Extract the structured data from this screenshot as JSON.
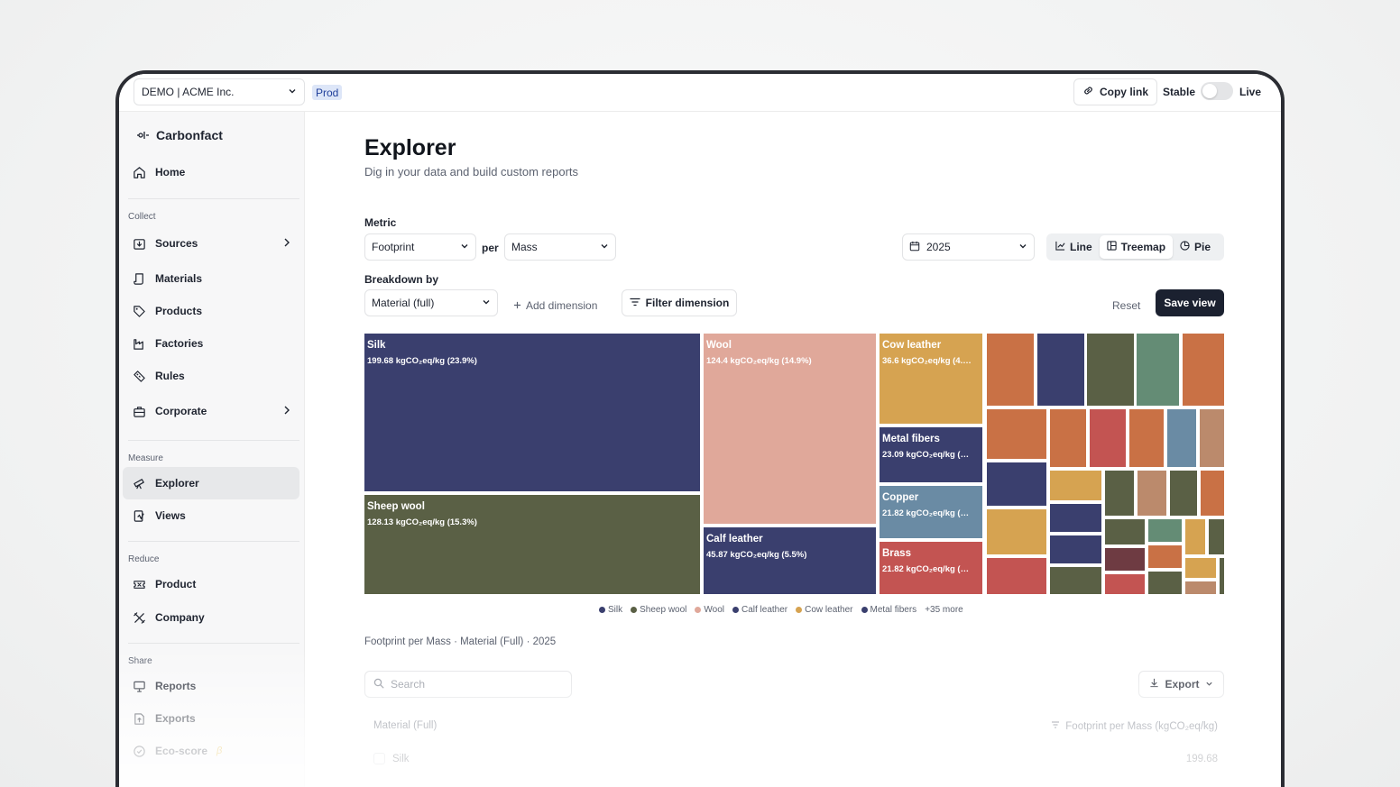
{
  "topbar": {
    "org": "DEMO | ACME Inc.",
    "env": "Prod",
    "copy_link": "Copy link",
    "stable": "Stable",
    "live": "Live"
  },
  "sidebar": {
    "brand": "Carbonfact",
    "home": "Home",
    "sections": {
      "collect": "Collect",
      "measure": "Measure",
      "reduce": "Reduce",
      "share": "Share"
    },
    "collect_items": [
      "Sources",
      "Materials",
      "Products",
      "Factories",
      "Rules",
      "Corporate"
    ],
    "measure_items": [
      "Explorer",
      "Views"
    ],
    "reduce_items": [
      "Product",
      "Company"
    ],
    "share_items": [
      "Reports",
      "Exports",
      "Eco-score"
    ],
    "beta_mark": "β"
  },
  "page": {
    "title": "Explorer",
    "subtitle": "Dig in your data and build custom reports"
  },
  "controls": {
    "metric_label": "Metric",
    "metric_value": "Footprint",
    "per_label": "per",
    "per_value": "Mass",
    "year_value": "2025",
    "chart_types": [
      "Line",
      "Treemap",
      "Pie"
    ],
    "active_chart_type": "Treemap",
    "breakdown_label": "Breakdown by",
    "breakdown_value": "Material (full)",
    "add_dimension": "Add dimension",
    "filter_dimension": "Filter dimension",
    "reset": "Reset",
    "save_view": "Save view"
  },
  "colors": {
    "navy": "#3a3f6e",
    "olive": "#5a6045",
    "salmon": "#e0a89a",
    "mustard": "#d6a351",
    "slate": "#6a8ba4",
    "red": "#c35452",
    "orange": "#c97145",
    "sage": "#648c75",
    "tan": "#bb8a6c",
    "maroon": "#6e3b42"
  },
  "chart_data": {
    "type": "treemap",
    "unit_label": "kgCO₂eq/kg",
    "items": [
      {
        "name": "Silk",
        "value": 199.68,
        "label": "199.68 kgCO₂eq/kg (23.9%)",
        "color": "#3a3f6e"
      },
      {
        "name": "Sheep wool",
        "value": 128.13,
        "label": "128.13 kgCO₂eq/kg (15.3%)",
        "color": "#5a6045"
      },
      {
        "name": "Wool",
        "value": 124.4,
        "label": "124.4 kgCO₂eq/kg (14.9%)",
        "color": "#e0a89a"
      },
      {
        "name": "Calf leather",
        "value": 45.87,
        "label": "45.87 kgCO₂eq/kg (5.5%)",
        "color": "#3a3f6e"
      },
      {
        "name": "Cow leather",
        "value": 36.6,
        "label": "36.6 kgCO₂eq/kg (4.…",
        "color": "#d6a351"
      },
      {
        "name": "Metal fibers",
        "value": 23.09,
        "label": "23.09 kgCO₂eq/kg (…",
        "color": "#3a3f6e"
      },
      {
        "name": "Copper",
        "value": 21.82,
        "label": "21.82 kgCO₂eq/kg (…",
        "color": "#6a8ba4"
      },
      {
        "name": "Brass",
        "value": 21.82,
        "label": "21.82 kgCO₂eq/kg (…",
        "color": "#c35452"
      }
    ],
    "legend": [
      "Silk",
      "Sheep wool",
      "Wool",
      "Calf leather",
      "Cow leather",
      "Metal fibers"
    ],
    "legend_colors": [
      "#3a3f6e",
      "#5a6045",
      "#e0a89a",
      "#3a3f6e",
      "#d6a351",
      "#3a3f6e"
    ],
    "legend_more": "+35 more"
  },
  "table": {
    "caption": "Footprint per Mass · Material (Full) · 2025",
    "search_placeholder": "Search",
    "export": "Export",
    "col_material": "Material (Full)",
    "col_value": "Footprint per Mass (kgCO₂eq/kg)",
    "rows": [
      {
        "name": "Silk",
        "value": "199.68"
      }
    ]
  }
}
